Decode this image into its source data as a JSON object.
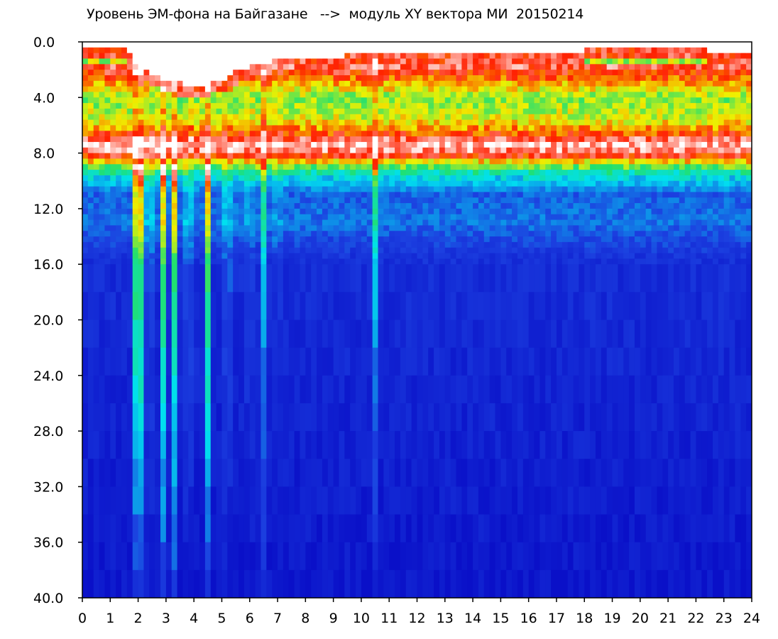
{
  "title": "Уровень ЭМ-фона на Байгазане   -->  модуль XY вектора МИ  20150214",
  "chart_data": {
    "type": "heatmap",
    "title": "Уровень ЭМ-фона на Байгазане   -->  модуль XY вектора МИ  20150214",
    "xlabel": "",
    "ylabel": "",
    "xlim": [
      0,
      24
    ],
    "ylim": [
      40,
      0
    ],
    "y_inverted": true,
    "grid": false,
    "x_ticks": [
      0,
      1,
      2,
      3,
      4,
      5,
      6,
      7,
      8,
      9,
      10,
      11,
      12,
      13,
      14,
      15,
      16,
      17,
      18,
      19,
      20,
      21,
      22,
      23,
      24
    ],
    "x_tick_labels": [
      "0",
      "1",
      "2",
      "3",
      "4",
      "5",
      "6",
      "7",
      "8",
      "9",
      "10",
      "11",
      "12",
      "13",
      "14",
      "15",
      "16",
      "17",
      "18",
      "19",
      "20",
      "21",
      "22",
      "23",
      "24"
    ],
    "y_ticks": [
      0,
      4,
      8,
      12,
      16,
      20,
      24,
      28,
      32,
      36,
      40
    ],
    "y_tick_labels": [
      "0.0",
      "4.0",
      "8.0",
      "12.0",
      "16.0",
      "20.0",
      "24.0",
      "28.0",
      "32.0",
      "36.0",
      "40.0"
    ],
    "colormap": [
      "#0a10c8",
      "#1c40e0",
      "#00e0f0",
      "#20e070",
      "#f0f000",
      "#ff2000",
      "#ffffff"
    ],
    "colormap_order": "low-to-high",
    "band_levels": {
      "0": 0.0,
      "1": 0.22,
      "1.7": 0.9,
      "2.5": 0.8,
      "4": 0.58,
      "5.5": 0.64,
      "6.5": 0.78,
      "7.3": 0.96,
      "8": 0.9,
      "8.8": 0.62,
      "9.6": 0.36,
      "11": 0.2,
      "13": 0.22,
      "14.5": 0.16,
      "16": 0.1,
      "40": 0.02
    },
    "top_boundary": {
      "0": 0.5,
      "1": 0.5,
      "1.7": 0.6,
      "2": 1.8,
      "3": 2.8,
      "4": 3.2,
      "5": 2.8,
      "5.5": 2.2,
      "6": 1.8,
      "7": 1.3,
      "8": 1.2,
      "9": 1.1,
      "10": 0.9,
      "12": 0.8,
      "14": 0.7,
      "16": 0.7,
      "18": 0.6,
      "20": 0.6,
      "21": 0.5,
      "24": 0.7
    },
    "vertical_streaks": [
      1.9,
      2.1,
      2.4,
      2.9,
      3.3,
      3.8,
      4.5,
      5.2,
      6.0,
      6.5,
      7.0,
      10.5
    ]
  }
}
